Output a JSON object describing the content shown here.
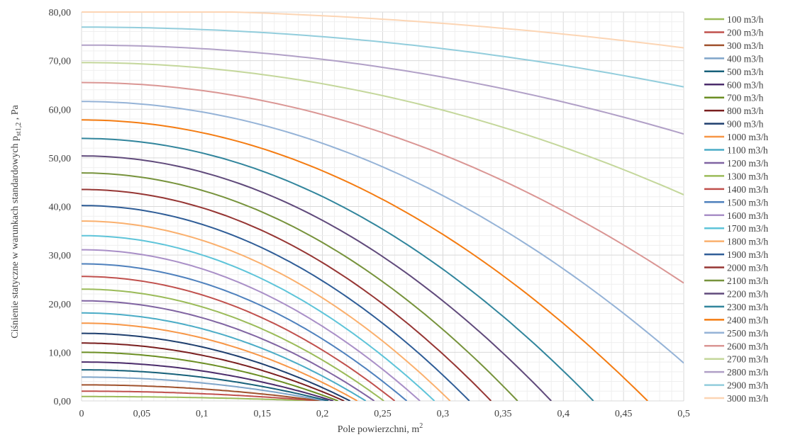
{
  "chart_data": {
    "type": "line",
    "title": "",
    "xlabel": "Pole powierzchni,  m",
    "xlabel_sup": "2",
    "ylabel_main": "Ciśnienie  statyczne  w warunkach  standardowych  p",
    "ylabel_sub": "st1,2",
    "ylabel_unit": " , Pa",
    "xlim": [
      0,
      0.5
    ],
    "ylim": [
      0,
      80
    ],
    "x_ticks": [
      "0",
      "0,05",
      "0,1",
      "0,15",
      "0,2",
      "0,25",
      "0,3",
      "0,35",
      "0,4",
      "0,45",
      "0,5"
    ],
    "y_ticks": [
      "0,00",
      "10,00",
      "20,00",
      "30,00",
      "40,00",
      "50,00",
      "60,00",
      "70,00",
      "80,00"
    ],
    "grid": "major and minor",
    "legend_position": "right",
    "x_series_note_dummy_removed": null,
    "series": [
      {
        "name": "100 m3/h",
        "color": "#9bbb59",
        "y0": 0.9,
        "x_zero": 0.194
      },
      {
        "name": "200 m3/h",
        "color": "#c0504d",
        "y0": 2.0,
        "x_zero": 0.197
      },
      {
        "name": "300 m3/h",
        "color": "#a0522d",
        "y0": 3.3,
        "x_zero": 0.199
      },
      {
        "name": "400 m3/h",
        "color": "#7fa5c9",
        "y0": 4.9,
        "x_zero": 0.202
      },
      {
        "name": "500 m3/h",
        "color": "#17617a",
        "y0": 6.4,
        "x_zero": 0.205
      },
      {
        "name": "600 m3/h",
        "color": "#4b2c6b",
        "y0": 8.0,
        "x_zero": 0.209
      },
      {
        "name": "700 m3/h",
        "color": "#6b8e23",
        "y0": 10.0,
        "x_zero": 0.213
      },
      {
        "name": "800 m3/h",
        "color": "#7a1f1f",
        "y0": 11.9,
        "x_zero": 0.218
      },
      {
        "name": "900 m3/h",
        "color": "#1f3f6e",
        "y0": 13.9,
        "x_zero": 0.223
      },
      {
        "name": "1000 m3/h",
        "color": "#f79646",
        "y0": 16.0,
        "x_zero": 0.229
      },
      {
        "name": "1100 m3/h",
        "color": "#4bacc6",
        "y0": 18.1,
        "x_zero": 0.236
      },
      {
        "name": "1200 m3/h",
        "color": "#8064a2",
        "y0": 20.6,
        "x_zero": 0.243
      },
      {
        "name": "1300 m3/h",
        "color": "#9bbb59",
        "y0": 23.0,
        "x_zero": 0.251
      },
      {
        "name": "1400 m3/h",
        "color": "#c0504d",
        "y0": 25.6,
        "x_zero": 0.26
      },
      {
        "name": "1500 m3/h",
        "color": "#4f81bd",
        "y0": 28.2,
        "x_zero": 0.27
      },
      {
        "name": "1600 m3/h",
        "color": "#a98fc7",
        "y0": 31.1,
        "x_zero": 0.281
      },
      {
        "name": "1700 m3/h",
        "color": "#5ec4d9",
        "y0": 34.0,
        "x_zero": 0.293
      },
      {
        "name": "1800 m3/h",
        "color": "#fab06e",
        "y0": 37.0,
        "x_zero": 0.306
      },
      {
        "name": "1900 m3/h",
        "color": "#2f5d97",
        "y0": 40.2,
        "x_zero": 0.322
      },
      {
        "name": "2000 m3/h",
        "color": "#963634",
        "y0": 43.5,
        "x_zero": 0.34
      },
      {
        "name": "2100 m3/h",
        "color": "#77933c",
        "y0": 46.9,
        "x_zero": 0.362
      },
      {
        "name": "2200 m3/h",
        "color": "#604a7b",
        "y0": 50.4,
        "x_zero": 0.39
      },
      {
        "name": "2300 m3/h",
        "color": "#31859c",
        "y0": 54.0,
        "x_zero": 0.425
      },
      {
        "name": "2400 m3/h",
        "color": "#f47c12",
        "y0": 57.8,
        "x_zero": 0.47
      },
      {
        "name": "2500 m3/h",
        "color": "#95b3d7",
        "y0": 61.6,
        "x_zero": 0.535
      },
      {
        "name": "2600 m3/h",
        "color": "#da9694",
        "y0": 65.5,
        "x_zero": 0.63
      },
      {
        "name": "2700 m3/h",
        "color": "#c4d79b",
        "y0": 69.6,
        "x_zero": 0.8
      },
      {
        "name": "2800 m3/h",
        "color": "#b1a0c7",
        "y0": 73.2,
        "x_zero": 1.0
      },
      {
        "name": "2900 m3/h",
        "color": "#92cddc",
        "y0": 76.9,
        "x_zero": 1.25
      },
      {
        "name": "3000 m3/h",
        "color": "#fcd5b4",
        "y0": 80.5,
        "x_zero": 1.6
      }
    ]
  }
}
